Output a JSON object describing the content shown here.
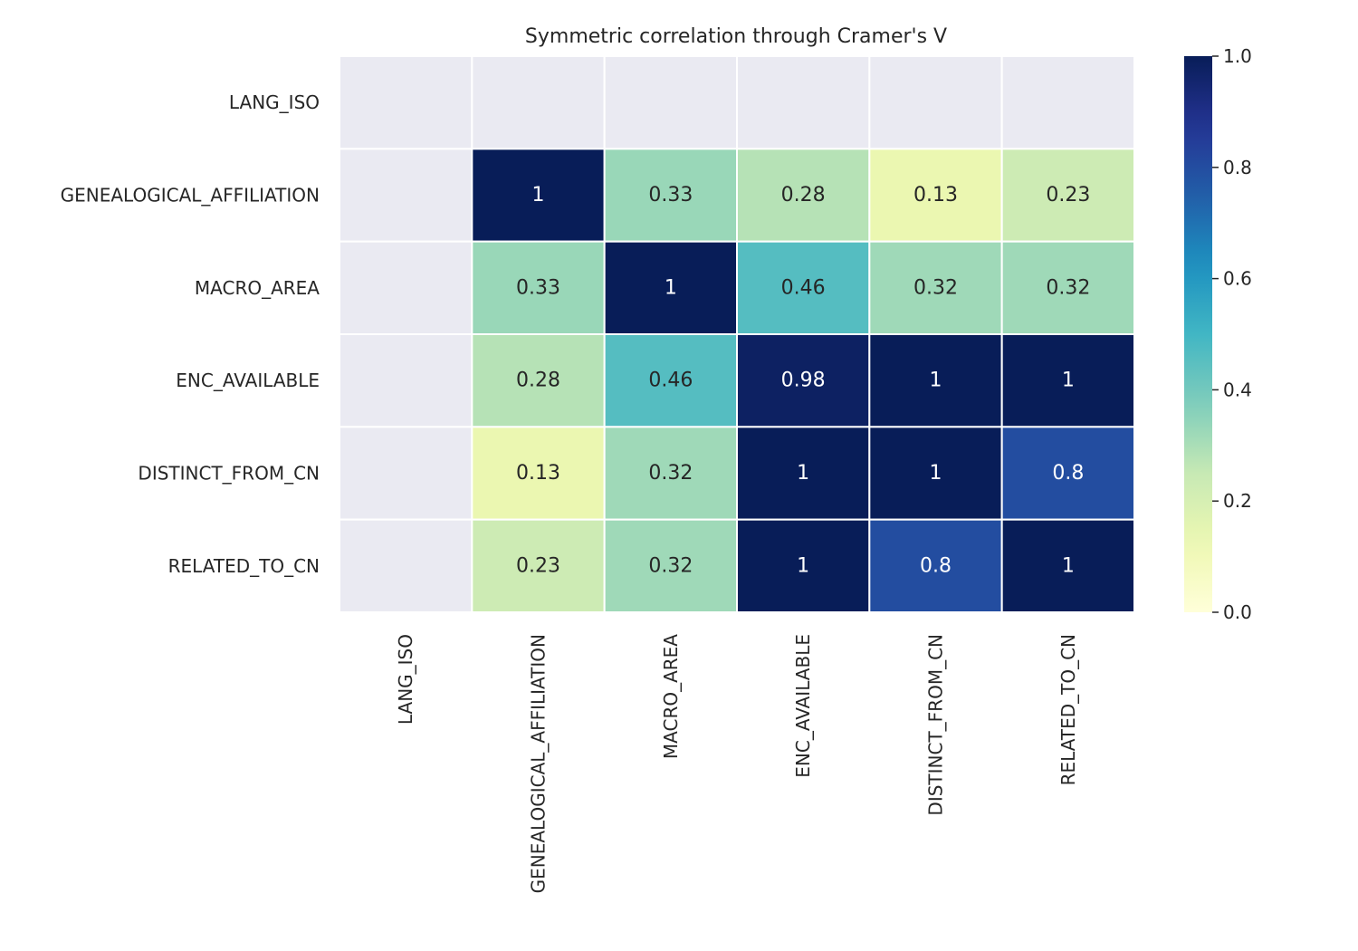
{
  "chart_data": {
    "type": "heatmap",
    "title": "Symmetric correlation through Cramer's V",
    "row_labels": [
      "LANG_ISO",
      "GENEALOGICAL_AFFILIATION",
      "MACRO_AREA",
      "ENC_AVAILABLE",
      "DISTINCT_FROM_CN",
      "RELATED_TO_CN"
    ],
    "col_labels": [
      "LANG_ISO",
      "GENEALOGICAL_AFFILIATION",
      "MACRO_AREA",
      "ENC_AVAILABLE",
      "DISTINCT_FROM_CN",
      "RELATED_TO_CN"
    ],
    "values": [
      [
        null,
        null,
        null,
        null,
        null,
        null
      ],
      [
        null,
        1,
        0.33,
        0.28,
        0.13,
        0.23
      ],
      [
        null,
        0.33,
        1,
        0.46,
        0.32,
        0.32
      ],
      [
        null,
        0.28,
        0.46,
        0.98,
        1,
        1
      ],
      [
        null,
        0.13,
        0.32,
        1,
        1,
        0.8
      ],
      [
        null,
        0.23,
        0.32,
        1,
        0.8,
        1
      ]
    ],
    "cell_labels": [
      [
        "",
        "",
        "",
        "",
        "",
        ""
      ],
      [
        "",
        "1",
        "0.33",
        "0.28",
        "0.13",
        "0.23"
      ],
      [
        "",
        "0.33",
        "1",
        "0.46",
        "0.32",
        "0.32"
      ],
      [
        "",
        "0.28",
        "0.46",
        "0.98",
        "1",
        "1"
      ],
      [
        "",
        "0.13",
        "0.32",
        "1",
        "1",
        "0.8"
      ],
      [
        "",
        "0.23",
        "0.32",
        "1",
        "0.8",
        "1"
      ]
    ],
    "colormap": "YlGnBu",
    "missing_color": "#eaeaf2",
    "grid_line_color": "#ffffff",
    "colorbar": {
      "range": [
        0,
        1
      ],
      "ticks": [
        0.0,
        0.2,
        0.4,
        0.6,
        0.8,
        1.0
      ],
      "tick_labels": [
        "0.0",
        "0.2",
        "0.4",
        "0.6",
        "0.8",
        "1.0"
      ]
    },
    "xlabel": "",
    "ylabel": ""
  }
}
